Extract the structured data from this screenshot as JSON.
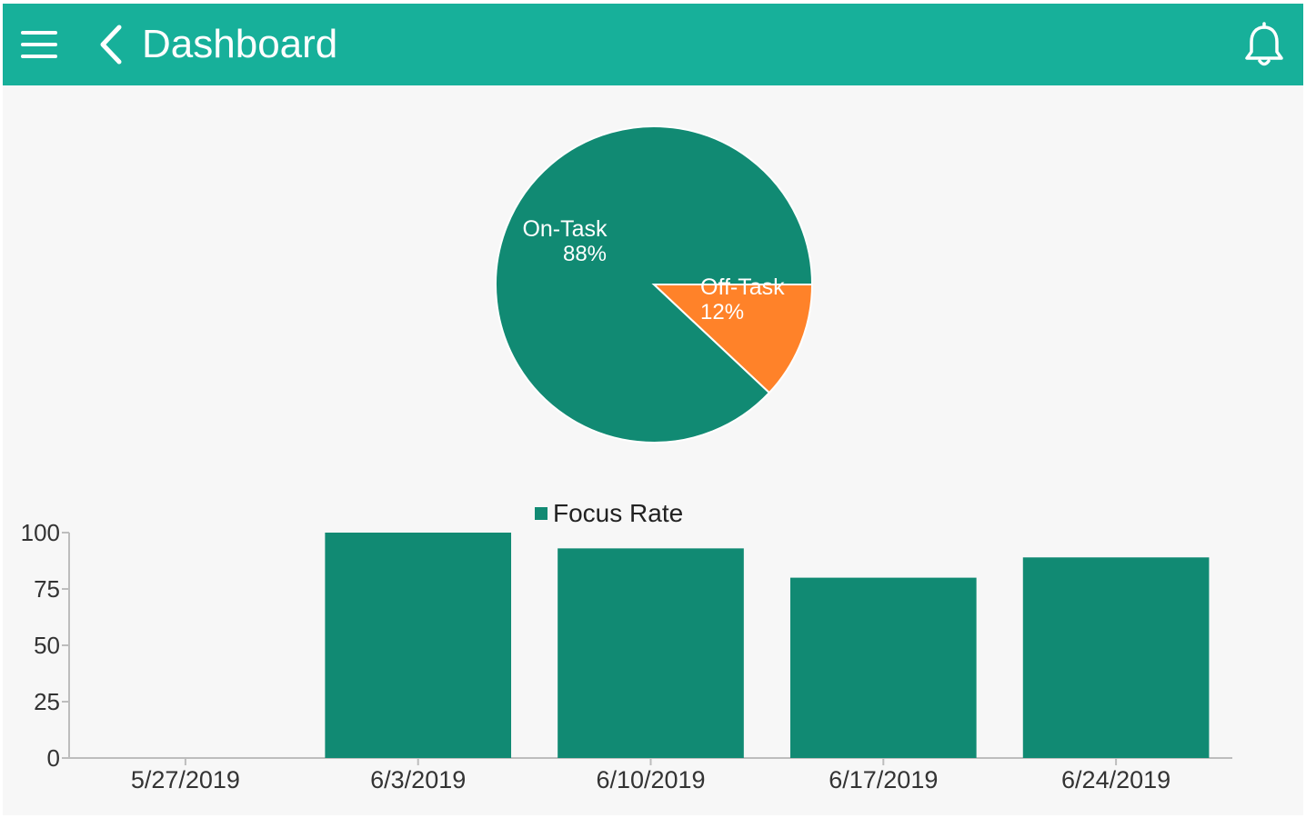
{
  "app": {
    "title": "Dashboard"
  },
  "icons": {
    "menu": "hamburger-menu-icon",
    "back": "chevron-left-icon",
    "notifications": "bell-icon"
  },
  "colors": {
    "header": "#17b09a",
    "on_task": "#118a73",
    "off_task": "#ff8229",
    "bar": "#118a73",
    "background": "#f7f7f7"
  },
  "chart_data": [
    {
      "type": "pie",
      "slices": [
        {
          "label": "On-Task",
          "value": 88,
          "value_label": "88%",
          "color": "#118a73"
        },
        {
          "label": "Off-Task",
          "value": 12,
          "value_label": "12%",
          "color": "#ff8229"
        }
      ]
    },
    {
      "type": "bar",
      "legend": "Focus Rate",
      "legend_placement": "top-center",
      "categories": [
        "5/27/2019",
        "6/3/2019",
        "6/10/2019",
        "6/17/2019",
        "6/24/2019"
      ],
      "series": [
        {
          "name": "Focus Rate",
          "values": [
            0,
            100,
            93,
            80,
            89
          ],
          "color": "#118a73"
        }
      ],
      "ylim": [
        0,
        100
      ],
      "yticks": [
        0,
        25,
        50,
        75,
        100
      ],
      "grid": false
    }
  ]
}
